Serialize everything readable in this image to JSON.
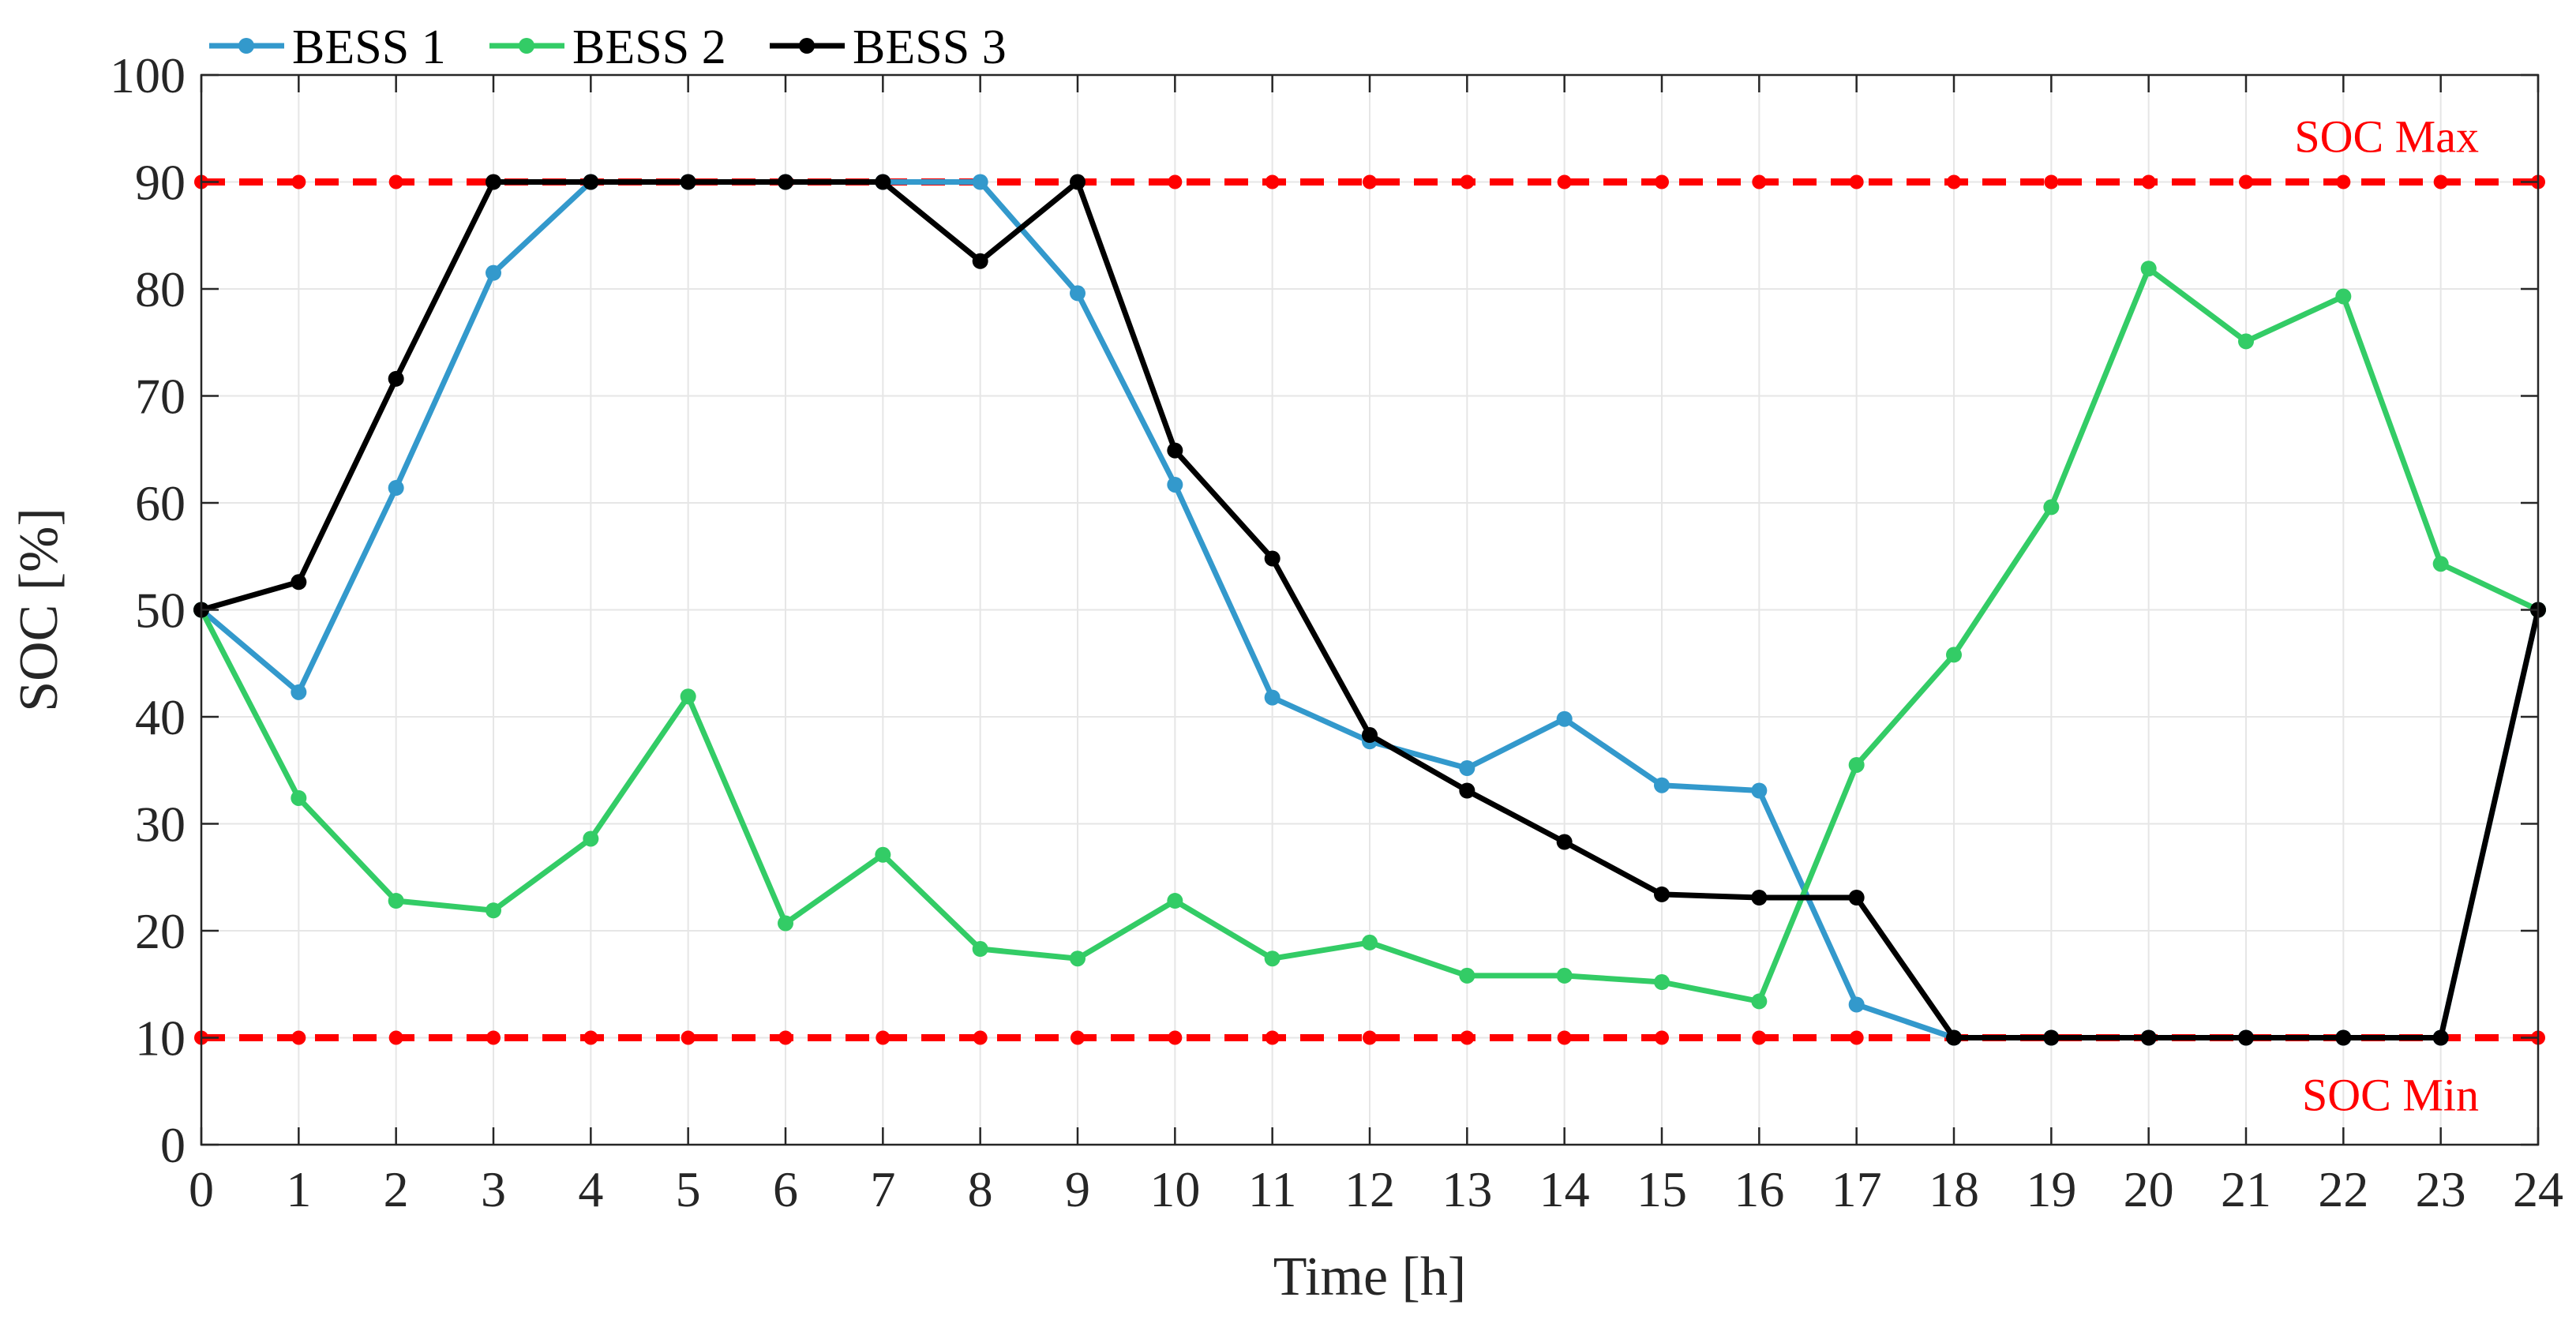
{
  "chart_data": {
    "type": "line",
    "xlabel": "Time [h]",
    "ylabel": "SOC [%]",
    "xlim": [
      0,
      24
    ],
    "ylim": [
      0,
      100
    ],
    "grid": true,
    "legend_position": "top-left (above plot)",
    "x": [
      0,
      1,
      2,
      3,
      4,
      5,
      6,
      7,
      8,
      9,
      10,
      11,
      12,
      13,
      14,
      15,
      16,
      17,
      18,
      19,
      20,
      21,
      22,
      23,
      24
    ],
    "x_tick_labels": [
      "0",
      "1",
      "2",
      "3",
      "4",
      "5",
      "6",
      "7",
      "8",
      "9",
      "10",
      "11",
      "12",
      "13",
      "14",
      "15",
      "16",
      "17",
      "18",
      "19",
      "20",
      "21",
      "22",
      "23",
      "24"
    ],
    "y_ticks": [
      0,
      10,
      20,
      30,
      40,
      50,
      60,
      70,
      80,
      90,
      100
    ],
    "y_tick_labels": [
      "0",
      "10",
      "20",
      "30",
      "40",
      "50",
      "60",
      "70",
      "80",
      "90",
      "100"
    ],
    "series": [
      {
        "name": "BESS 1",
        "color": "#3399cc",
        "values": [
          50,
          42.3,
          61.4,
          81.5,
          90,
          90,
          90,
          90,
          90,
          79.6,
          61.7,
          41.8,
          37.7,
          35.2,
          39.8,
          33.6,
          33.1,
          13.1,
          10,
          10,
          10,
          10,
          10,
          10,
          50
        ]
      },
      {
        "name": "BESS 2",
        "color": "#33cc66",
        "values": [
          50,
          32.4,
          22.8,
          21.9,
          28.6,
          41.9,
          20.7,
          27.1,
          18.3,
          17.4,
          22.8,
          17.4,
          18.9,
          15.8,
          15.8,
          15.2,
          13.4,
          35.5,
          45.8,
          59.6,
          81.9,
          75.1,
          79.3,
          54.3,
          50
        ]
      },
      {
        "name": "BESS 3",
        "color": "#000000",
        "values": [
          50,
          52.6,
          71.6,
          90,
          90,
          90,
          90,
          90,
          82.6,
          90,
          64.9,
          54.8,
          38.3,
          33.1,
          28.3,
          23.4,
          23.1,
          23.1,
          10,
          10,
          10,
          10,
          10,
          10,
          50
        ]
      }
    ],
    "reference_lines": [
      {
        "label": "SOC Max",
        "value": 90,
        "color": "#ff0000"
      },
      {
        "label": "SOC Min",
        "value": 10,
        "color": "#ff0000"
      }
    ]
  }
}
